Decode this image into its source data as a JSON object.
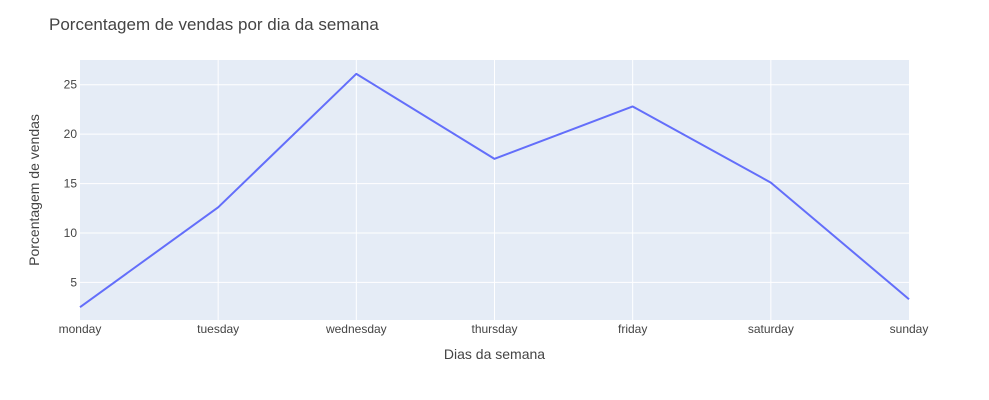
{
  "chart_data": {
    "type": "line",
    "title": "Porcentagem de vendas por dia da semana",
    "xlabel": "Dias da semana",
    "ylabel": "Porcentagem de vendas",
    "categories": [
      "monday",
      "tuesday",
      "wednesday",
      "thursday",
      "friday",
      "saturday",
      "sunday"
    ],
    "series": [
      {
        "values": [
          2.5,
          12.6,
          26.1,
          17.5,
          22.8,
          15.1,
          3.3
        ]
      }
    ],
    "ylim": [
      1.2,
      27.5
    ],
    "yticks": [
      5,
      10,
      15,
      20,
      25
    ],
    "grid": true,
    "legend": "none",
    "colors": {
      "line": "#636efa",
      "plot_bg": "#e5ecf6",
      "grid": "#ffffff",
      "text": "#444444"
    }
  }
}
